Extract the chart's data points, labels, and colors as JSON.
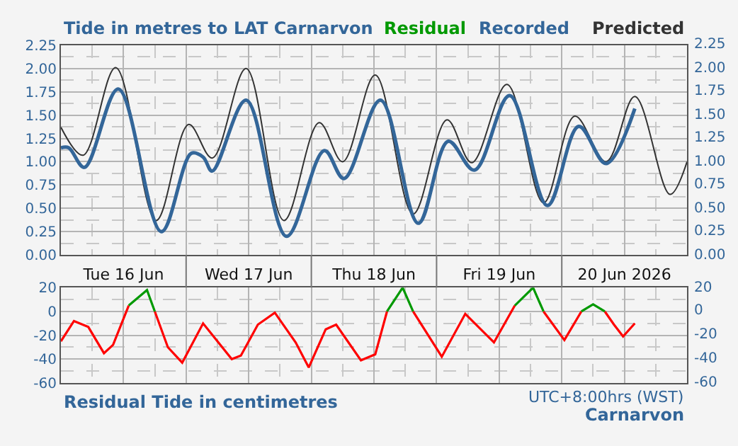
{
  "chart_data": [
    {
      "type": "line",
      "title": "Tide in metres to LAT Carnarvon",
      "legend": "top right",
      "grid": true,
      "xlim": [
        "2026-06-16T00:00",
        "2026-06-21T00:00"
      ],
      "xticks": [
        {
          "value": "2026-06-16T12:00",
          "label": "Tue 16 Jun"
        },
        {
          "value": "2026-06-17T00:00",
          "label": null
        },
        {
          "value": "2026-06-17T12:00",
          "label": "Wed 17 Jun"
        },
        {
          "value": "2026-06-18T00:00",
          "label": null
        },
        {
          "value": "2026-06-18T12:00",
          "label": "Thu 18 Jun"
        },
        {
          "value": "2026-06-19T00:00",
          "label": null
        },
        {
          "value": "2026-06-19T12:00",
          "label": "Fri 19 Jun"
        },
        {
          "value": "2026-06-20T00:00",
          "label": null
        },
        {
          "value": "2026-06-20T12:00",
          "label": "20 Jun 2026"
        }
      ],
      "ylim": [
        0,
        2.25
      ],
      "yticks": [
        {
          "value": 0,
          "label": "0.00"
        },
        {
          "value": 0.25,
          "label": "0.25"
        },
        {
          "value": 0.5,
          "label": "0.50"
        },
        {
          "value": 0.75,
          "label": "0.75"
        },
        {
          "value": 1,
          "label": "1.00"
        },
        {
          "value": 1.25,
          "label": "1.25"
        },
        {
          "value": 1.5,
          "label": "1.50"
        },
        {
          "value": 1.75,
          "label": "1.75"
        },
        {
          "value": 2,
          "label": "2.00"
        },
        {
          "value": 2.25,
          "label": "2.25"
        }
      ],
      "y2lim": [
        0,
        2.25
      ],
      "y2ticks": [
        {
          "value": 0,
          "label": "0.00"
        },
        {
          "value": 0.25,
          "label": "0.25"
        },
        {
          "value": 0.5,
          "label": "0.50"
        },
        {
          "value": 0.75,
          "label": "0.75"
        },
        {
          "value": 1,
          "label": "1.00"
        },
        {
          "value": 1.25,
          "label": "1.25"
        },
        {
          "value": 1.5,
          "label": "1.50"
        },
        {
          "value": 1.75,
          "label": "1.75"
        },
        {
          "value": 2,
          "label": "2.00"
        },
        {
          "value": 2.25,
          "label": "2.25"
        }
      ],
      "series": [
        {
          "name": "Predicted",
          "color": "#333333",
          "x": [
            "2026-06-16T00:00",
            "2026-06-16T04:15",
            "2026-06-16T10:30",
            "2026-06-16T18:15",
            "2026-06-17T00:30",
            "2026-06-17T05:00",
            "2026-06-17T11:30",
            "2026-06-17T18:45",
            "2026-06-18T01:30",
            "2026-06-18T06:00",
            "2026-06-18T12:15",
            "2026-06-18T19:30",
            "2026-06-19T02:00",
            "2026-06-19T06:45",
            "2026-06-19T13:30",
            "2026-06-19T20:30",
            "2026-06-20T02:30",
            "2026-06-20T08:30",
            "2026-06-20T14:00",
            "2026-06-20T20:45",
            "2026-06-21T00:00"
          ],
          "values": [
            1.37,
            1.07,
            2.01,
            0.37,
            1.4,
            1.04,
            2.0,
            0.37,
            1.42,
            1.0,
            1.93,
            0.44,
            1.45,
            0.99,
            1.83,
            0.56,
            1.49,
            1.0,
            1.7,
            0.65,
            1.0
          ]
        },
        {
          "name": "Recorded",
          "color": "#336699",
          "x": [
            "2026-06-16T00:00",
            "2026-06-16T01:30",
            "2026-06-16T04:30",
            "2026-06-16T11:00",
            "2026-06-16T19:15",
            "2026-06-17T01:00",
            "2026-06-17T03:15",
            "2026-06-17T05:00",
            "2026-06-17T11:30",
            "2026-06-17T19:15",
            "2026-06-18T02:30",
            "2026-06-18T06:15",
            "2026-06-18T13:15",
            "2026-06-18T20:30",
            "2026-06-19T02:15",
            "2026-06-19T07:15",
            "2026-06-19T14:00",
            "2026-06-19T21:15",
            "2026-06-20T03:15",
            "2026-06-20T08:30",
            "2026-06-20T14:00"
          ],
          "values": [
            1.15,
            1.15,
            0.94,
            1.78,
            0.25,
            1.09,
            1.05,
            0.9,
            1.66,
            0.2,
            1.12,
            0.82,
            1.66,
            0.34,
            1.22,
            0.91,
            1.71,
            0.53,
            1.38,
            0.98,
            1.57
          ]
        }
      ]
    },
    {
      "type": "line",
      "title": "Residual Tide in centimetres",
      "grid": true,
      "tick_labels": "y",
      "annotations": [
        "UTC+8:00hrs (WST)",
        "Carnarvon"
      ],
      "xlim": [
        "2026-06-16T00:00",
        "2026-06-21T00:00"
      ],
      "xticks": [
        {
          "value": "2026-06-16T12:00",
          "label": null
        },
        {
          "value": "2026-06-17T00:00",
          "label": null
        },
        {
          "value": "2026-06-17T12:00",
          "label": null
        },
        {
          "value": "2026-06-18T00:00",
          "label": null
        },
        {
          "value": "2026-06-18T12:00",
          "label": null
        },
        {
          "value": "2026-06-19T00:00",
          "label": null
        },
        {
          "value": "2026-06-19T12:00",
          "label": null
        },
        {
          "value": "2026-06-20T00:00",
          "label": null
        },
        {
          "value": "2026-06-20T12:00",
          "label": null
        }
      ],
      "ylim": [
        -60,
        20
      ],
      "yticks": [
        -60,
        -40,
        -20,
        0,
        20
      ],
      "y2lim": [
        -60,
        20
      ],
      "y2ticks": [
        -60,
        -40,
        -20,
        0,
        20
      ],
      "series": [
        {
          "color": "#ff0000",
          "x": [
            "2026-06-16T00:00",
            "2026-06-16T02:30",
            "2026-06-16T05:15",
            "2026-06-16T08:15",
            "2026-06-16T10:00",
            "2026-06-16T13:00",
            "2026-06-16T16:30",
            "2026-06-16T18:00",
            "2026-06-16T20:30",
            "2026-06-16T23:15",
            "2026-06-17T03:15",
            "2026-06-17T08:45",
            "2026-06-17T10:30",
            "2026-06-17T13:45",
            "2026-06-17T17:00",
            "2026-06-17T21:00",
            "2026-06-17T23:30",
            "2026-06-18T02:45",
            "2026-06-18T04:45",
            "2026-06-18T09:30",
            "2026-06-18T12:15",
            "2026-06-18T14:30",
            "2026-06-18T17:30",
            "2026-06-18T19:30",
            "2026-06-19T01:00",
            "2026-06-19T05:30",
            "2026-06-19T11:00",
            "2026-06-19T15:00",
            "2026-06-19T18:30",
            "2026-06-19T20:30",
            "2026-06-20T00:30",
            "2026-06-20T03:45",
            "2026-06-20T06:00",
            "2026-06-20T08:15",
            "2026-06-20T10:00",
            "2026-06-20T11:45",
            "2026-06-20T14:00"
          ],
          "values": [
            -25,
            -8,
            -13,
            -35,
            -28,
            5,
            null,
            0,
            -30,
            -43,
            -10,
            -40,
            -37,
            -11,
            -1,
            -26,
            -47,
            -15,
            -11,
            -41,
            -36,
            0,
            null,
            0,
            -38,
            -2,
            -26,
            5,
            null,
            0,
            -24,
            0,
            null,
            0,
            -11,
            -21,
            -10
          ]
        },
        {
          "name": "Residual",
          "color": "#009900",
          "x": [
            "2026-06-16T13:00",
            "2026-06-16T16:30",
            "2026-06-16T18:00",
            "2026-06-16T18:01",
            "2026-06-18T14:30",
            "2026-06-18T17:30",
            "2026-06-18T19:30",
            "2026-06-18T19:31",
            "2026-06-19T15:00",
            "2026-06-19T18:30",
            "2026-06-19T20:30",
            "2026-06-19T20:31",
            "2026-06-20T03:45",
            "2026-06-20T06:00",
            "2026-06-20T08:15"
          ],
          "values": [
            5,
            18,
            0,
            null,
            0,
            20,
            0,
            null,
            5,
            20,
            0,
            null,
            0,
            6,
            0
          ]
        }
      ]
    }
  ]
}
